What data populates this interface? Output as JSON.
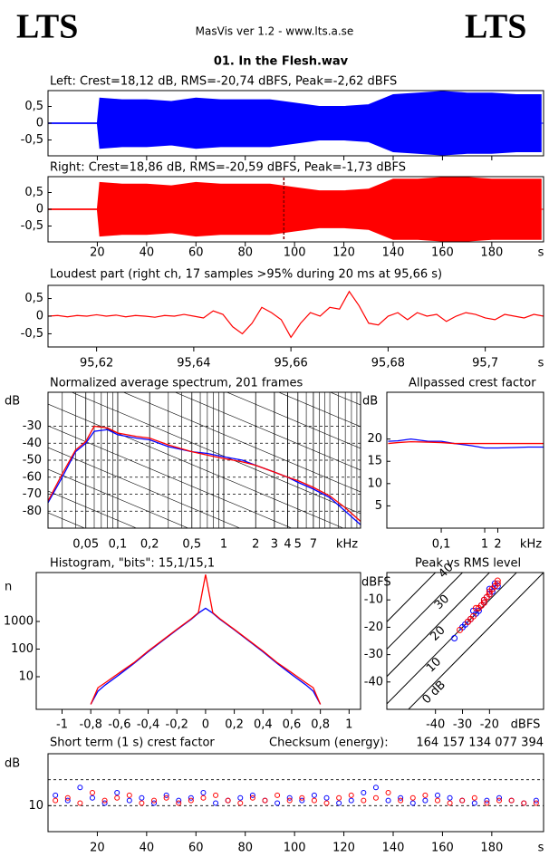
{
  "header": {
    "logo_left": "LTS",
    "app": "MasVis ver 1.2 - www.lts.a.se",
    "logo_right": "LTS",
    "file": "01. In the Flesh.wav"
  },
  "time_axis": {
    "xlim": [
      0,
      201
    ],
    "xticks": [
      20,
      40,
      60,
      80,
      100,
      120,
      140,
      160,
      180
    ],
    "unit": "s"
  },
  "left": {
    "title": "Left: Crest=18,12 dB, RMS=-20,74 dBFS, Peak=-2,62 dBFS",
    "color": "#0000ff",
    "ylim": [
      -1,
      1
    ],
    "yticks": [
      {
        "value": 0.5,
        "label": "0,5"
      },
      0,
      {
        "value": -0.5,
        "label": "-0,5"
      }
    ],
    "x": [
      0,
      20,
      21,
      30,
      40,
      50,
      60,
      70,
      80,
      90,
      100,
      110,
      120,
      130,
      140,
      150,
      160,
      170,
      180,
      190,
      200
    ],
    "envelope": [
      0.01,
      0.01,
      0.75,
      0.7,
      0.7,
      0.65,
      0.75,
      0.7,
      0.7,
      0.7,
      0.6,
      0.5,
      0.5,
      0.55,
      0.85,
      0.9,
      0.95,
      0.9,
      0.9,
      0.85,
      0.85
    ]
  },
  "right": {
    "title": "Right: Crest=18,86 dB, RMS=-20,59 dBFS, Peak=-1,73 dBFS",
    "color": "#ff0000",
    "marker_color": "#800000",
    "marker_x": 95.66,
    "ylim": [
      -1,
      1
    ],
    "yticks": [
      {
        "value": 0.5,
        "label": "0,5"
      },
      0,
      {
        "value": -0.5,
        "label": "-0,5"
      }
    ],
    "x": [
      0,
      20,
      21,
      30,
      40,
      50,
      60,
      70,
      80,
      90,
      100,
      110,
      120,
      130,
      140,
      150,
      160,
      170,
      180,
      190,
      200
    ],
    "envelope": [
      0.01,
      0.01,
      0.8,
      0.75,
      0.75,
      0.7,
      0.8,
      0.75,
      0.75,
      0.75,
      0.65,
      0.55,
      0.55,
      0.6,
      0.9,
      0.9,
      0.95,
      0.95,
      0.9,
      0.9,
      0.9
    ]
  },
  "loudest": {
    "title": "Loudest part (right ch, 17 samples >95% during 20 ms at 95,66 s)",
    "color": "#ff0000",
    "ylim": [
      -0.9,
      0.9
    ],
    "yticks": [
      {
        "value": 0.5,
        "label": "0,5"
      },
      0,
      {
        "value": -0.5,
        "label": "-0,5"
      }
    ],
    "xlim": [
      95.61,
      95.712
    ],
    "unit": "s",
    "xticks": [
      {
        "value": 95.62,
        "label": "95,62"
      },
      {
        "value": 95.64,
        "label": "95,64"
      },
      {
        "value": 95.66,
        "label": "95,66"
      },
      {
        "value": 95.68,
        "label": "95,68"
      },
      {
        "value": 95.7,
        "label": "95,7"
      }
    ],
    "x": [
      95.61,
      95.612,
      95.614,
      95.616,
      95.618,
      95.62,
      95.622,
      95.624,
      95.626,
      95.628,
      95.63,
      95.632,
      95.634,
      95.636,
      95.638,
      95.64,
      95.642,
      95.644,
      95.646,
      95.648,
      95.65,
      95.652,
      95.654,
      95.656,
      95.658,
      95.66,
      95.662,
      95.664,
      95.666,
      95.668,
      95.67,
      95.672,
      95.674,
      95.676,
      95.678,
      95.68,
      95.682,
      95.684,
      95.686,
      95.688,
      95.69,
      95.692,
      95.694,
      95.696,
      95.698,
      95.7,
      95.702,
      95.704,
      95.706,
      95.708,
      95.71,
      95.712
    ],
    "values": [
      0,
      0.02,
      -0.02,
      0.02,
      0,
      0.04,
      0,
      0.03,
      -0.02,
      0.02,
      0,
      -0.03,
      0.02,
      0,
      0.05,
      0,
      -0.05,
      0.15,
      0.05,
      -0.3,
      -0.5,
      -0.2,
      0.25,
      0.1,
      -0.1,
      -0.6,
      -0.2,
      0.1,
      0,
      0.25,
      0.2,
      0.7,
      0.3,
      -0.2,
      -0.25,
      0,
      0.1,
      -0.1,
      0.1,
      0,
      0.05,
      -0.15,
      0,
      0.1,
      0.05,
      -0.05,
      -0.1,
      0.05,
      0,
      -0.05,
      0.05,
      0
    ]
  },
  "spectrum": {
    "title": "Normalized average spectrum, 201 frames",
    "ylabel": "dB",
    "unit": "kHz",
    "ylim": [
      -90,
      -10
    ],
    "xlim": [
      0.022,
      19.5
    ],
    "yticks": [
      -30,
      -40,
      -50,
      -60,
      -70,
      -80
    ],
    "xticks": [
      {
        "value": 0.05,
        "label": "0,05"
      },
      {
        "value": 0.1,
        "label": "0,1"
      },
      {
        "value": 0.2,
        "label": "0,2"
      },
      {
        "value": 0.5,
        "label": "0,5"
      },
      1,
      2,
      3,
      4,
      5,
      7
    ],
    "freq": [
      0.022,
      0.03,
      0.04,
      0.05,
      0.06,
      0.08,
      0.1,
      0.15,
      0.2,
      0.3,
      0.5,
      0.7,
      1,
      1.5,
      2,
      3,
      4,
      5,
      7,
      10,
      14,
      19.5
    ],
    "series": [
      {
        "color": "#0000ff",
        "values": [
          -75,
          -60,
          -45,
          -40,
          -33,
          -32,
          -35,
          -37,
          -38,
          -42,
          -45,
          -46,
          -48,
          -50,
          -53,
          -57,
          -60,
          -63,
          -67,
          -72,
          -80,
          -88
        ]
      },
      {
        "color": "#ff0000",
        "values": [
          -74,
          -58,
          -44,
          -39,
          -30,
          -31,
          -34,
          -36,
          -37,
          -41,
          -45,
          -47,
          -49,
          -51,
          -53,
          -57,
          -60,
          -62,
          -66,
          -71,
          -78,
          -86
        ]
      }
    ]
  },
  "crest": {
    "title": "Allpassed crest factor",
    "ylabel": "dB",
    "unit": "kHz",
    "ylim": [
      0,
      30.5
    ],
    "xlim": [
      0.0056,
      22.6
    ],
    "yticks": [
      20,
      15,
      10,
      5
    ],
    "xticks": [
      {
        "value": 0.1,
        "label": "0,1"
      },
      1,
      2
    ],
    "freq": [
      0.006,
      0.01,
      0.02,
      0.05,
      0.1,
      0.2,
      0.5,
      1,
      2,
      5,
      10,
      22.6
    ],
    "series": [
      {
        "color": "#0000ff",
        "values": [
          19.5,
          19.6,
          20,
          19.5,
          19.5,
          19,
          18.5,
          18,
          18,
          18.1,
          18.2,
          18.2
        ]
      },
      {
        "color": "#ff0000",
        "values": [
          19,
          19.2,
          19.4,
          19.3,
          19.2,
          19,
          19,
          19,
          19,
          19,
          19,
          19
        ]
      }
    ]
  },
  "histogram": {
    "title": "Histogram, \"bits\": 15,1/15,1",
    "ylabel": "n",
    "log_y": true,
    "ylim": [
      0.66,
      59000
    ],
    "xlim": [
      -1.18,
      1.08
    ],
    "yticks": [
      1000,
      100,
      10
    ],
    "xticks": [
      -1,
      {
        "value": -0.8,
        "label": "-0,8"
      },
      {
        "value": -0.6,
        "label": "-0,6"
      },
      {
        "value": -0.4,
        "label": "-0,4"
      },
      {
        "value": -0.2,
        "label": "-0,2"
      },
      0,
      {
        "value": 0.2,
        "label": "0,2"
      },
      {
        "value": 0.4,
        "label": "0,4"
      },
      {
        "value": 0.6,
        "label": "0,6"
      },
      {
        "value": 0.8,
        "label": "0,8"
      },
      1
    ],
    "x": [
      -0.8,
      -0.75,
      -0.7,
      -0.6,
      -0.5,
      -0.4,
      -0.3,
      -0.2,
      -0.1,
      -0.05,
      0,
      0.05,
      0.1,
      0.2,
      0.3,
      0.4,
      0.5,
      0.6,
      0.7,
      0.75,
      0.8
    ],
    "series": [
      {
        "color": "#0000ff",
        "values": [
          1,
          3,
          5,
          12,
          30,
          80,
          200,
          500,
          1200,
          2000,
          3000,
          2000,
          1200,
          500,
          200,
          80,
          30,
          12,
          5,
          3,
          1
        ]
      },
      {
        "color": "#ff0000",
        "values": [
          1,
          4,
          6,
          14,
          32,
          85,
          210,
          520,
          1250,
          2100,
          50000,
          2100,
          1250,
          520,
          210,
          85,
          32,
          14,
          6,
          4,
          1
        ]
      }
    ]
  },
  "peak_rms": {
    "title": "Peak vs RMS level",
    "ylabel": "dBFS",
    "unit": "dBFS",
    "xlim": [
      -58,
      0
    ],
    "ylim": [
      -50,
      0
    ],
    "xticks": [
      -40,
      -30,
      -20
    ],
    "yticks": [
      -10,
      -20,
      -30,
      -40
    ],
    "crest_lines": [
      {
        "value": 0,
        "label": "0 dB"
      },
      10,
      20,
      30,
      40
    ],
    "series": [
      {
        "color": "#0000ff",
        "x": [
          -33,
          -30,
          -28,
          -27,
          -25,
          -24,
          -23,
          -22,
          -22,
          -21,
          -20,
          -20,
          -19,
          -18,
          -18,
          -17,
          -26,
          -29
        ],
        "y": [
          -24,
          -20,
          -18,
          -17,
          -15,
          -14,
          -12,
          -11,
          -10,
          -9,
          -8,
          -6,
          -7,
          -5,
          -4,
          -5,
          -14,
          -19
        ]
      },
      {
        "color": "#ff0000",
        "x": [
          -31,
          -28,
          -27,
          -26,
          -24,
          -23,
          -22,
          -21,
          -20,
          -20,
          -19,
          -18,
          -17,
          -17,
          -25,
          -22
        ],
        "y": [
          -21,
          -18,
          -17,
          -16,
          -13,
          -12,
          -10,
          -9,
          -8,
          -7,
          -6,
          -5,
          -4,
          -3,
          -13,
          -11
        ]
      }
    ]
  },
  "short_term": {
    "title": "Short term (1 s) crest factor",
    "checksum_label": "Checksum (energy):",
    "checksum": "164 157 134 077 394",
    "ylabel": "dB",
    "ylim": [
      0,
      30
    ],
    "yticks": [
      10
    ],
    "grid_lines": [
      10,
      20
    ],
    "x": [
      3,
      8,
      13,
      18,
      23,
      28,
      33,
      38,
      43,
      48,
      53,
      58,
      63,
      68,
      73,
      78,
      83,
      88,
      93,
      98,
      103,
      108,
      113,
      118,
      123,
      128,
      133,
      138,
      143,
      148,
      153,
      158,
      163,
      168,
      173,
      178,
      183,
      188,
      193,
      198
    ],
    "series": [
      {
        "color": "#0000ff",
        "values": [
          14,
          12,
          17,
          13,
          11,
          15,
          12,
          13,
          11,
          14,
          12,
          13,
          15,
          11,
          12,
          13,
          14,
          12,
          11,
          13,
          12,
          14,
          13,
          11,
          12,
          15,
          17,
          12,
          13,
          11,
          12,
          14,
          13,
          12,
          11,
          12,
          13,
          12,
          11,
          12
        ]
      },
      {
        "color": "#ff0000",
        "values": [
          12,
          13,
          11,
          15,
          12,
          13,
          14,
          11,
          12,
          13,
          11,
          12,
          13,
          14,
          12,
          11,
          13,
          12,
          14,
          12,
          13,
          12,
          11,
          13,
          14,
          12,
          13,
          15,
          12,
          13,
          14,
          12,
          11,
          12,
          13,
          11,
          12,
          12,
          11,
          11
        ]
      }
    ]
  }
}
